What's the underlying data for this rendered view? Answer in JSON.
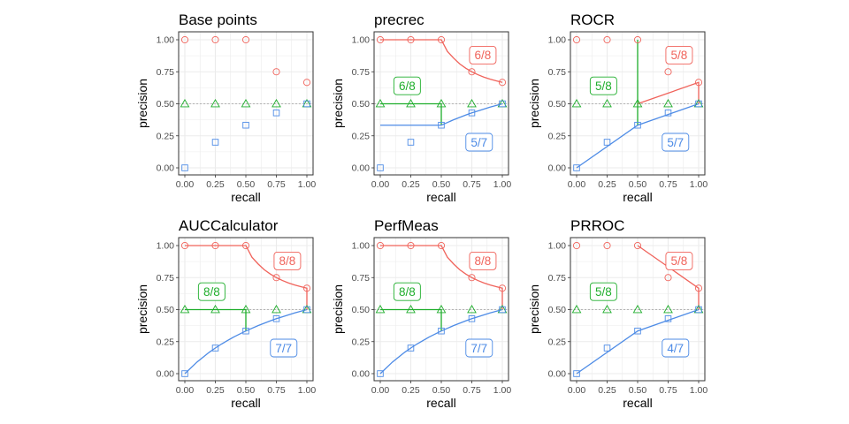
{
  "colors": {
    "red": "#F0635B",
    "green": "#1FAE2C",
    "blue": "#4D8BE6",
    "grid": "#ebebeb",
    "border": "#333333",
    "refline": "#b3b3b3"
  },
  "chart_data": [
    {
      "type": "scatter",
      "title": "Base points",
      "xlabel": "recall",
      "ylabel": "precision",
      "xlim": [
        0,
        1
      ],
      "ylim": [
        0,
        1
      ],
      "x_ticks": [
        "0.00",
        "0.25",
        "0.50",
        "0.75",
        "1.00"
      ],
      "y_ticks": [
        "0.00",
        "0.25",
        "0.50",
        "0.75",
        "1.00"
      ],
      "baseline": 0.5,
      "grid": true,
      "series": [
        {
          "color_key": "red",
          "marker": "circle",
          "points": [
            [
              0,
              1
            ],
            [
              0.25,
              1
            ],
            [
              0.5,
              1
            ],
            [
              0.75,
              0.75
            ],
            [
              1,
              0.667
            ]
          ]
        },
        {
          "color_key": "green",
          "marker": "triangle",
          "points": [
            [
              0,
              0.5
            ],
            [
              0.25,
              0.5
            ],
            [
              0.5,
              0.5
            ],
            [
              0.75,
              0.5
            ],
            [
              1,
              0.5
            ]
          ]
        },
        {
          "color_key": "blue",
          "marker": "square",
          "points": [
            [
              0,
              0
            ],
            [
              0.25,
              0.2
            ],
            [
              0.5,
              0.333
            ],
            [
              0.75,
              0.429
            ],
            [
              1,
              0.5
            ]
          ]
        }
      ],
      "labels": []
    },
    {
      "type": "line",
      "title": "precrec",
      "xlabel": "recall",
      "ylabel": "precision",
      "xlim": [
        0,
        1
      ],
      "ylim": [
        0,
        1
      ],
      "x_ticks": [
        "0.00",
        "0.25",
        "0.50",
        "0.75",
        "1.00"
      ],
      "y_ticks": [
        "0.00",
        "0.25",
        "0.50",
        "0.75",
        "1.00"
      ],
      "baseline": 0.5,
      "grid": true,
      "series": [
        {
          "color_key": "red",
          "marker": "circle",
          "points": [
            [
              0,
              1
            ],
            [
              0.25,
              1
            ],
            [
              0.5,
              1
            ],
            [
              0.75,
              0.75
            ],
            [
              1,
              0.667
            ]
          ],
          "curve": [
            [
              0,
              1
            ],
            [
              0.5,
              1
            ],
            [
              0.55,
              0.909
            ],
            [
              0.6,
              0.857
            ],
            [
              0.65,
              0.812
            ],
            [
              0.7,
              0.778
            ],
            [
              0.75,
              0.75
            ],
            [
              0.8,
              0.727
            ],
            [
              0.85,
              0.708
            ],
            [
              0.9,
              0.692
            ],
            [
              0.95,
              0.679
            ],
            [
              1,
              0.667
            ]
          ]
        },
        {
          "color_key": "green",
          "marker": "triangle",
          "points": [
            [
              0,
              0.5
            ],
            [
              0.25,
              0.5
            ],
            [
              0.5,
              0.5
            ],
            [
              0.75,
              0.5
            ],
            [
              1,
              0.5
            ]
          ],
          "curve": [
            [
              0,
              0.5
            ],
            [
              0.5,
              0.5
            ],
            [
              0.5,
              0.333
            ]
          ]
        },
        {
          "color_key": "blue",
          "marker": "square",
          "points": [
            [
              0,
              0
            ],
            [
              0.25,
              0.2
            ],
            [
              0.5,
              0.333
            ],
            [
              0.75,
              0.429
            ],
            [
              1,
              0.5
            ]
          ],
          "curve": [
            [
              0,
              0.333
            ],
            [
              0.5,
              0.333
            ],
            [
              0.6,
              0.375
            ],
            [
              0.7,
              0.412
            ],
            [
              0.75,
              0.429
            ],
            [
              0.8,
              0.444
            ],
            [
              0.9,
              0.474
            ],
            [
              1,
              0.5
            ]
          ]
        }
      ],
      "labels": [
        {
          "text": "6/8",
          "color_key": "red",
          "x": 0.84,
          "y": 0.88
        },
        {
          "text": "6/8",
          "color_key": "green",
          "x": 0.22,
          "y": 0.64
        },
        {
          "text": "5/7",
          "color_key": "blue",
          "x": 0.81,
          "y": 0.2
        }
      ]
    },
    {
      "type": "line",
      "title": "ROCR",
      "xlabel": "recall",
      "ylabel": "precision",
      "xlim": [
        0,
        1
      ],
      "ylim": [
        0,
        1
      ],
      "x_ticks": [
        "0.00",
        "0.25",
        "0.50",
        "0.75",
        "1.00"
      ],
      "y_ticks": [
        "0.00",
        "0.25",
        "0.50",
        "0.75",
        "1.00"
      ],
      "baseline": 0.5,
      "grid": true,
      "series": [
        {
          "color_key": "red",
          "marker": "circle",
          "points": [
            [
              0,
              1
            ],
            [
              0.25,
              1
            ],
            [
              0.5,
              1
            ],
            [
              0.75,
              0.75
            ],
            [
              1,
              0.667
            ]
          ],
          "curve": [
            [
              0.5,
              0.5
            ],
            [
              1,
              0.667
            ],
            [
              1,
              0.5
            ]
          ]
        },
        {
          "color_key": "green",
          "marker": "triangle",
          "points": [
            [
              0,
              0.5
            ],
            [
              0.25,
              0.5
            ],
            [
              0.5,
              0.5
            ],
            [
              0.75,
              0.5
            ],
            [
              1,
              0.5
            ]
          ],
          "curve": [
            [
              0.5,
              1
            ],
            [
              0.5,
              0.333
            ]
          ]
        },
        {
          "color_key": "blue",
          "marker": "square",
          "points": [
            [
              0,
              0
            ],
            [
              0.25,
              0.2
            ],
            [
              0.5,
              0.333
            ],
            [
              0.75,
              0.429
            ],
            [
              1,
              0.5
            ]
          ],
          "curve": [
            [
              0,
              0
            ],
            [
              0.5,
              0.333
            ],
            [
              1,
              0.5
            ]
          ]
        }
      ],
      "labels": [
        {
          "text": "5/8",
          "color_key": "red",
          "x": 0.84,
          "y": 0.88
        },
        {
          "text": "5/8",
          "color_key": "green",
          "x": 0.22,
          "y": 0.64
        },
        {
          "text": "5/7",
          "color_key": "blue",
          "x": 0.81,
          "y": 0.2
        }
      ]
    },
    {
      "type": "line",
      "title": "AUCCalculator",
      "xlabel": "recall",
      "ylabel": "precision",
      "xlim": [
        0,
        1
      ],
      "ylim": [
        0,
        1
      ],
      "x_ticks": [
        "0.00",
        "0.25",
        "0.50",
        "0.75",
        "1.00"
      ],
      "y_ticks": [
        "0.00",
        "0.25",
        "0.50",
        "0.75",
        "1.00"
      ],
      "baseline": 0.5,
      "grid": true,
      "series": [
        {
          "color_key": "red",
          "marker": "circle",
          "points": [
            [
              0,
              1
            ],
            [
              0.25,
              1
            ],
            [
              0.5,
              1
            ],
            [
              0.75,
              0.75
            ],
            [
              1,
              0.667
            ]
          ],
          "curve": [
            [
              0,
              1
            ],
            [
              0.5,
              1
            ],
            [
              0.55,
              0.909
            ],
            [
              0.6,
              0.857
            ],
            [
              0.65,
              0.812
            ],
            [
              0.7,
              0.778
            ],
            [
              0.75,
              0.75
            ],
            [
              0.8,
              0.727
            ],
            [
              0.85,
              0.708
            ],
            [
              0.9,
              0.692
            ],
            [
              0.95,
              0.679
            ],
            [
              1,
              0.667
            ],
            [
              1,
              0.5
            ]
          ]
        },
        {
          "color_key": "green",
          "marker": "triangle",
          "points": [
            [
              0,
              0.5
            ],
            [
              0.25,
              0.5
            ],
            [
              0.5,
              0.5
            ],
            [
              0.75,
              0.5
            ],
            [
              1,
              0.5
            ]
          ],
          "curve": [
            [
              0,
              0.5
            ],
            [
              0.5,
              0.5
            ],
            [
              0.5,
              0.333
            ]
          ]
        },
        {
          "color_key": "blue",
          "marker": "square",
          "points": [
            [
              0,
              0
            ],
            [
              0.25,
              0.2
            ],
            [
              0.5,
              0.333
            ],
            [
              0.75,
              0.429
            ],
            [
              1,
              0.5
            ]
          ],
          "curve": [
            [
              0,
              0
            ],
            [
              0.1,
              0.091
            ],
            [
              0.2,
              0.167
            ],
            [
              0.25,
              0.2
            ],
            [
              0.3,
              0.231
            ],
            [
              0.4,
              0.286
            ],
            [
              0.5,
              0.333
            ],
            [
              0.6,
              0.375
            ],
            [
              0.7,
              0.412
            ],
            [
              0.75,
              0.429
            ],
            [
              0.8,
              0.444
            ],
            [
              0.9,
              0.474
            ],
            [
              1,
              0.5
            ]
          ]
        }
      ],
      "labels": [
        {
          "text": "8/8",
          "color_key": "red",
          "x": 0.84,
          "y": 0.88
        },
        {
          "text": "8/8",
          "color_key": "green",
          "x": 0.22,
          "y": 0.64
        },
        {
          "text": "7/7",
          "color_key": "blue",
          "x": 0.81,
          "y": 0.2
        }
      ]
    },
    {
      "type": "line",
      "title": "PerfMeas",
      "xlabel": "recall",
      "ylabel": "precision",
      "xlim": [
        0,
        1
      ],
      "ylim": [
        0,
        1
      ],
      "x_ticks": [
        "0.00",
        "0.25",
        "0.50",
        "0.75",
        "1.00"
      ],
      "y_ticks": [
        "0.00",
        "0.25",
        "0.50",
        "0.75",
        "1.00"
      ],
      "baseline": 0.5,
      "grid": true,
      "series": [
        {
          "color_key": "red",
          "marker": "circle",
          "points": [
            [
              0,
              1
            ],
            [
              0.25,
              1
            ],
            [
              0.5,
              1
            ],
            [
              0.75,
              0.75
            ],
            [
              1,
              0.667
            ]
          ],
          "curve": [
            [
              0,
              1
            ],
            [
              0.5,
              1
            ],
            [
              0.55,
              0.909
            ],
            [
              0.6,
              0.857
            ],
            [
              0.65,
              0.812
            ],
            [
              0.7,
              0.778
            ],
            [
              0.75,
              0.75
            ],
            [
              0.8,
              0.727
            ],
            [
              0.85,
              0.708
            ],
            [
              0.9,
              0.692
            ],
            [
              0.95,
              0.679
            ],
            [
              1,
              0.667
            ],
            [
              1,
              0.5
            ]
          ]
        },
        {
          "color_key": "green",
          "marker": "triangle",
          "points": [
            [
              0,
              0.5
            ],
            [
              0.25,
              0.5
            ],
            [
              0.5,
              0.5
            ],
            [
              0.75,
              0.5
            ],
            [
              1,
              0.5
            ]
          ],
          "curve": [
            [
              0,
              0.5
            ],
            [
              0.5,
              0.5
            ],
            [
              0.5,
              0.333
            ]
          ]
        },
        {
          "color_key": "blue",
          "marker": "square",
          "points": [
            [
              0,
              0
            ],
            [
              0.25,
              0.2
            ],
            [
              0.5,
              0.333
            ],
            [
              0.75,
              0.429
            ],
            [
              1,
              0.5
            ]
          ],
          "curve": [
            [
              0,
              0
            ],
            [
              0.1,
              0.091
            ],
            [
              0.2,
              0.167
            ],
            [
              0.25,
              0.2
            ],
            [
              0.3,
              0.231
            ],
            [
              0.4,
              0.286
            ],
            [
              0.5,
              0.333
            ],
            [
              0.6,
              0.375
            ],
            [
              0.7,
              0.412
            ],
            [
              0.75,
              0.429
            ],
            [
              0.8,
              0.444
            ],
            [
              0.9,
              0.474
            ],
            [
              1,
              0.5
            ]
          ]
        }
      ],
      "labels": [
        {
          "text": "8/8",
          "color_key": "red",
          "x": 0.84,
          "y": 0.88
        },
        {
          "text": "8/8",
          "color_key": "green",
          "x": 0.22,
          "y": 0.64
        },
        {
          "text": "7/7",
          "color_key": "blue",
          "x": 0.81,
          "y": 0.2
        }
      ]
    },
    {
      "type": "line",
      "title": "PRROC",
      "xlabel": "recall",
      "ylabel": "precision",
      "xlim": [
        0,
        1
      ],
      "ylim": [
        0,
        1
      ],
      "x_ticks": [
        "0.00",
        "0.25",
        "0.50",
        "0.75",
        "1.00"
      ],
      "y_ticks": [
        "0.00",
        "0.25",
        "0.50",
        "0.75",
        "1.00"
      ],
      "baseline": 0.5,
      "grid": true,
      "series": [
        {
          "color_key": "red",
          "marker": "circle",
          "points": [
            [
              0,
              1
            ],
            [
              0.25,
              1
            ],
            [
              0.5,
              1
            ],
            [
              0.75,
              0.75
            ],
            [
              1,
              0.667
            ]
          ],
          "curve": [
            [
              0.5,
              1
            ],
            [
              1,
              0.667
            ],
            [
              1,
              0.5
            ]
          ]
        },
        {
          "color_key": "green",
          "marker": "triangle",
          "points": [
            [
              0,
              0.5
            ],
            [
              0.25,
              0.5
            ],
            [
              0.5,
              0.5
            ],
            [
              0.75,
              0.5
            ],
            [
              1,
              0.5
            ]
          ],
          "curve": []
        },
        {
          "color_key": "blue",
          "marker": "square",
          "points": [
            [
              0,
              0
            ],
            [
              0.25,
              0.2
            ],
            [
              0.5,
              0.333
            ],
            [
              0.75,
              0.429
            ],
            [
              1,
              0.5
            ]
          ],
          "curve": [
            [
              0,
              0
            ],
            [
              0.5,
              0.333
            ],
            [
              1,
              0.5
            ]
          ]
        }
      ],
      "labels": [
        {
          "text": "5/8",
          "color_key": "red",
          "x": 0.84,
          "y": 0.88
        },
        {
          "text": "5/8",
          "color_key": "green",
          "x": 0.22,
          "y": 0.64
        },
        {
          "text": "4/7",
          "color_key": "blue",
          "x": 0.81,
          "y": 0.2
        }
      ]
    }
  ]
}
